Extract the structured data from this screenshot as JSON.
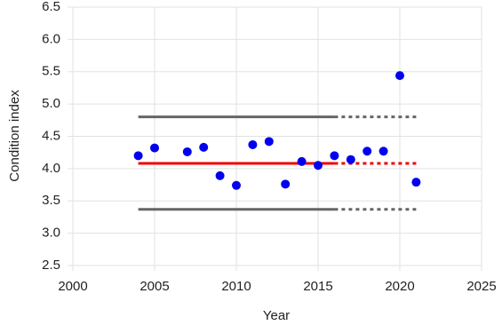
{
  "chart_data": {
    "type": "scatter",
    "x_label": "Year",
    "y_label": "Condition index",
    "x": [
      2004,
      2005,
      2007,
      2008,
      2009,
      2010,
      2011,
      2012,
      2013,
      2014,
      2015,
      2016,
      2017,
      2018,
      2019,
      2020,
      2021
    ],
    "values": [
      4.2,
      4.32,
      4.26,
      4.33,
      3.89,
      3.74,
      4.37,
      4.42,
      3.76,
      4.11,
      4.05,
      4.2,
      4.14,
      4.27,
      4.27,
      5.44,
      3.79
    ],
    "color": "#0000ee",
    "reference_lines": [
      {
        "color": "#666666",
        "x": [
          2004,
          2016
        ],
        "values": [
          4.8,
          4.8
        ],
        "dotted": false
      },
      {
        "color": "#666666",
        "x": [
          2016,
          2021
        ],
        "values": [
          4.8,
          4.8
        ],
        "dotted": true
      },
      {
        "color": "#ee0000",
        "x": [
          2004,
          2016
        ],
        "values": [
          4.08,
          4.08
        ],
        "dotted": false
      },
      {
        "color": "#ee0000",
        "x": [
          2016,
          2021
        ],
        "values": [
          4.08,
          4.08
        ],
        "dotted": true
      },
      {
        "color": "#666666",
        "x": [
          2004,
          2016
        ],
        "values": [
          3.37,
          3.37
        ],
        "dotted": false
      },
      {
        "color": "#666666",
        "x": [
          2016,
          2021
        ],
        "values": [
          3.37,
          3.37
        ],
        "dotted": true
      }
    ],
    "xlim": [
      2000,
      2025
    ],
    "xticks": [
      2000,
      2005,
      2010,
      2015,
      2020,
      2025
    ],
    "ylim": [
      2.5,
      6.5
    ],
    "yticks": [
      2.5,
      {
        "value": 3,
        "label": "3.0"
      },
      3.5,
      {
        "value": 4,
        "label": "4.0"
      },
      4.5,
      {
        "value": 5,
        "label": "5.0"
      },
      5.5,
      {
        "value": 6,
        "label": "6.0"
      },
      6.5
    ],
    "grid": true
  }
}
